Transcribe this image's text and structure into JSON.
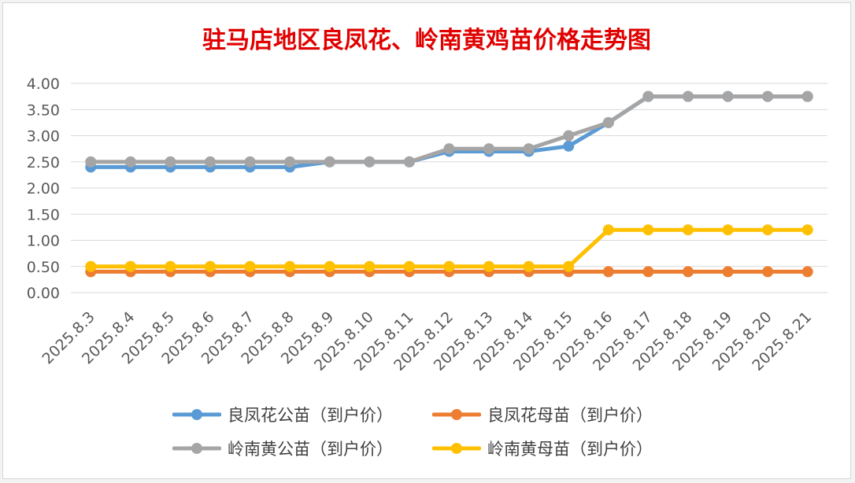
{
  "chart_data": {
    "type": "line",
    "title": "驻马店地区良凤花、岭南黄鸡苗价格走势图",
    "xlabel": "",
    "ylabel": "",
    "ylim": [
      0,
      4
    ],
    "yticks": [
      "0.00",
      "0.50",
      "1.00",
      "1.50",
      "2.00",
      "2.50",
      "3.00",
      "3.50",
      "4.00"
    ],
    "grid": true,
    "legend_position": "bottom",
    "categories": [
      "2025.8.3",
      "2025.8.4",
      "2025.8.5",
      "2025.8.6",
      "2025.8.7",
      "2025.8.8",
      "2025.8.9",
      "2025.8.10",
      "2025.8.11",
      "2025.8.12",
      "2025.8.13",
      "2025.8.14",
      "2025.8.15",
      "2025.8.16",
      "2025.8.17",
      "2025.8.18",
      "2025.8.19",
      "2025.8.20",
      "2025.8.21"
    ],
    "series": [
      {
        "name": "良凤花公苗（到户价）",
        "color": "#5b9bd5",
        "values": [
          2.4,
          2.4,
          2.4,
          2.4,
          2.4,
          2.4,
          2.5,
          2.5,
          2.5,
          2.7,
          2.7,
          2.7,
          2.8,
          3.25,
          3.75,
          3.75,
          3.75,
          3.75,
          3.75
        ]
      },
      {
        "name": "良凤花母苗（到户价）",
        "color": "#ed7d31",
        "values": [
          0.4,
          0.4,
          0.4,
          0.4,
          0.4,
          0.4,
          0.4,
          0.4,
          0.4,
          0.4,
          0.4,
          0.4,
          0.4,
          0.4,
          0.4,
          0.4,
          0.4,
          0.4,
          0.4
        ]
      },
      {
        "name": "岭南黄公苗（到户价）",
        "color": "#a5a5a5",
        "values": [
          2.5,
          2.5,
          2.5,
          2.5,
          2.5,
          2.5,
          2.5,
          2.5,
          2.5,
          2.75,
          2.75,
          2.75,
          3.0,
          3.25,
          3.75,
          3.75,
          3.75,
          3.75,
          3.75
        ]
      },
      {
        "name": "岭南黄母苗（到户价）",
        "color": "#ffc000",
        "values": [
          0.5,
          0.5,
          0.5,
          0.5,
          0.5,
          0.5,
          0.5,
          0.5,
          0.5,
          0.5,
          0.5,
          0.5,
          0.5,
          1.2,
          1.2,
          1.2,
          1.2,
          1.2,
          1.2
        ]
      }
    ]
  }
}
